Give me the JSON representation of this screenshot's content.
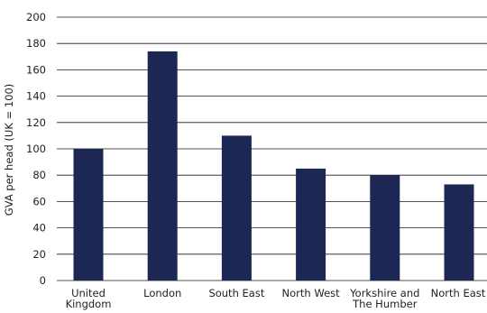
{
  "chart_data": {
    "type": "bar",
    "categories": [
      [
        "United",
        "Kingdom"
      ],
      [
        "London"
      ],
      [
        "South East"
      ],
      [
        "North West"
      ],
      [
        "Yorkshire and",
        "The Humber"
      ],
      [
        "North East"
      ]
    ],
    "values": [
      100,
      174,
      110,
      85,
      80,
      73
    ],
    "ylabel": "GVA per head (UK = 100)",
    "xlabel": "",
    "ylim": [
      0,
      200
    ],
    "yticks": [
      0,
      20,
      40,
      60,
      80,
      100,
      120,
      140,
      160,
      180,
      200
    ],
    "grid": true,
    "colors": {
      "bar": "#1c2754",
      "grid": "#1a1a1a"
    }
  }
}
